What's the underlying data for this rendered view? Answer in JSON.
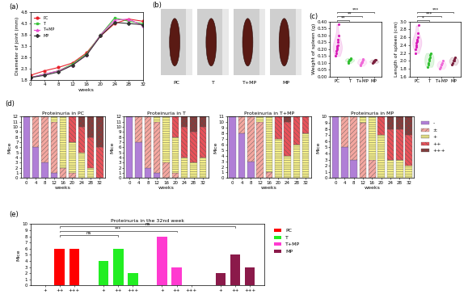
{
  "chart_data": [
    {
      "type": "line",
      "panel_label": "(a)",
      "x_label": "weeks",
      "y_label": "Diameter of joint (mm)",
      "x": [
        0,
        4,
        8,
        12,
        16,
        20,
        24,
        28,
        32
      ],
      "xlim": [
        0,
        32
      ],
      "xticks": [
        0,
        4,
        8,
        12,
        16,
        20,
        24,
        28,
        32
      ],
      "ylim": [
        1.8,
        4.8
      ],
      "yticks": [
        1.8,
        2.3,
        2.8,
        3.3,
        3.8,
        4.3,
        4.8
      ],
      "legend": "upper left",
      "series": [
        {
          "name": "PC",
          "color": "#e8202a",
          "marker": "circle",
          "values": [
            2.0,
            2.2,
            2.35,
            2.55,
            3.0,
            3.75,
            4.3,
            4.5,
            4.4
          ]
        },
        {
          "name": "T",
          "color": "#3cc43c",
          "marker": "square",
          "values": [
            1.9,
            2.05,
            2.2,
            2.5,
            2.95,
            3.8,
            4.55,
            4.4,
            4.3
          ]
        },
        {
          "name": "T+MP",
          "color": "#e84ad0",
          "marker": "triangle",
          "values": [
            1.9,
            2.05,
            2.2,
            2.45,
            2.9,
            3.8,
            4.45,
            4.5,
            4.2
          ]
        },
        {
          "name": "MP",
          "color": "#333333",
          "marker": "diamond",
          "values": [
            1.9,
            2.0,
            2.15,
            2.45,
            2.9,
            3.75,
            4.35,
            4.3,
            4.25
          ]
        }
      ]
    },
    {
      "type": "image",
      "panel_label": "(b)",
      "categories": [
        "PC",
        "T",
        "T+MP",
        "MP"
      ]
    },
    {
      "type": "violin",
      "panel_label": "(c)",
      "y_label": "Weight of spleen (g)",
      "categories": [
        "PC",
        "T",
        "T+MP",
        "MP"
      ],
      "colors": [
        "#d81bb8",
        "#2fbf2f",
        "#f06ad8",
        "#7a1f3d"
      ],
      "ylim": [
        0.0,
        0.4
      ],
      "yticks": [
        {
          "value": 0.0,
          "label": "0.00"
        },
        {
          "value": 0.05,
          "label": "0.05"
        },
        {
          "value": 0.1,
          "label": "0.10"
        },
        {
          "value": 0.15,
          "label": "0.15"
        },
        {
          "value": 0.2,
          "label": "0.20"
        },
        {
          "value": 0.25,
          "label": "0.25"
        },
        {
          "value": 0.3,
          "label": "0.30"
        },
        {
          "value": 0.35,
          "label": "0.35"
        },
        {
          "value": 0.4,
          "label": "0.40"
        }
      ],
      "points": [
        [
          0.15,
          0.17,
          0.19,
          0.2,
          0.21,
          0.22,
          0.23,
          0.25,
          0.27,
          0.3,
          0.38
        ],
        [
          0.1,
          0.11,
          0.115,
          0.12,
          0.12,
          0.125,
          0.13,
          0.135
        ],
        [
          0.08,
          0.09,
          0.1,
          0.1,
          0.105,
          0.11,
          0.12,
          0.125,
          0.13
        ],
        [
          0.1,
          0.105,
          0.11,
          0.11,
          0.115,
          0.12,
          0.125
        ]
      ],
      "comparisons": [
        {
          "from": "PC",
          "to": "T",
          "label": "**"
        },
        {
          "from": "PC",
          "to": "T+MP",
          "label": "**"
        },
        {
          "from": "PC",
          "to": "MP",
          "label": "***"
        }
      ]
    },
    {
      "type": "violin",
      "y_label": "Length of spleen (cm)",
      "categories": [
        "PC",
        "T",
        "T+MP",
        "MP"
      ],
      "colors": [
        "#d81bb8",
        "#2fbf2f",
        "#f06ad8",
        "#7a1f3d"
      ],
      "ylim": [
        1.6,
        3.0
      ],
      "yticks": [
        1.6,
        1.8,
        2.0,
        2.2,
        2.4,
        2.6,
        2.8,
        3.0
      ],
      "points": [
        [
          2.2,
          2.3,
          2.35,
          2.4,
          2.45,
          2.5,
          2.5,
          2.55,
          2.6,
          2.7,
          2.9
        ],
        [
          1.85,
          1.9,
          1.95,
          2.0,
          2.05,
          2.1,
          2.15,
          2.2
        ],
        [
          1.8,
          1.85,
          1.9,
          1.9,
          1.95,
          2.0
        ],
        [
          1.9,
          1.95,
          2.0,
          2.0,
          2.05,
          2.1
        ]
      ],
      "comparisons": [
        {
          "from": "PC",
          "to": "T",
          "label": "*"
        },
        {
          "from": "PC",
          "to": "T+MP",
          "label": "***"
        },
        {
          "from": "PC",
          "to": "MP",
          "label": "***"
        }
      ]
    },
    {
      "type": "bar",
      "stacked": true,
      "panel_label": "(d)",
      "title": "Proteinuria in PC",
      "x_label": "weeks",
      "y_label": "Mice",
      "categories": [
        "0",
        "4",
        "8",
        "12",
        "16",
        "20",
        "24",
        "28",
        "32"
      ],
      "ylim": [
        0,
        12
      ],
      "yticks": [
        0,
        1,
        2,
        3,
        4,
        5,
        6,
        7,
        8,
        9,
        10,
        11,
        12
      ],
      "series": [
        {
          "name": "-",
          "color": "#b07fd6",
          "values": [
            12,
            6,
            3,
            1,
            0,
            0,
            0,
            0,
            0
          ]
        },
        {
          "name": "±",
          "color": "#f4a7a0",
          "values": [
            0,
            6,
            9,
            10,
            2,
            1,
            0,
            0,
            0
          ]
        },
        {
          "name": "+",
          "color": "#f5f08a",
          "values": [
            0,
            0,
            0,
            1,
            10,
            6,
            5,
            2,
            0
          ]
        },
        {
          "name": "++",
          "color": "#e8525a",
          "values": [
            0,
            0,
            0,
            0,
            0,
            5,
            5,
            6,
            6
          ]
        },
        {
          "name": "+++",
          "color": "#8a3a3a",
          "values": [
            0,
            0,
            0,
            0,
            0,
            0,
            2,
            4,
            6
          ]
        }
      ]
    },
    {
      "type": "bar",
      "stacked": true,
      "title": "Proteinuria in T",
      "x_label": "weeks",
      "y_label": "Mice",
      "categories": [
        "0",
        "4",
        "8",
        "12",
        "16",
        "20",
        "24",
        "28",
        "32"
      ],
      "ylim": [
        0,
        12
      ],
      "yticks": [
        0,
        1,
        2,
        3,
        4,
        5,
        6,
        7,
        8,
        9,
        10,
        11,
        12
      ],
      "series": [
        {
          "name": "-",
          "color": "#b07fd6",
          "values": [
            12,
            7,
            2,
            1,
            0,
            0,
            0,
            0,
            0
          ]
        },
        {
          "name": "±",
          "color": "#f4a7a0",
          "values": [
            0,
            5,
            10,
            10,
            3,
            1,
            0,
            0,
            0
          ]
        },
        {
          "name": "+",
          "color": "#f5f08a",
          "values": [
            0,
            0,
            0,
            1,
            9,
            7,
            4,
            3,
            4
          ]
        },
        {
          "name": "++",
          "color": "#e8525a",
          "values": [
            0,
            0,
            0,
            0,
            0,
            4,
            6,
            6,
            6
          ]
        },
        {
          "name": "+++",
          "color": "#8a3a3a",
          "values": [
            0,
            0,
            0,
            0,
            0,
            0,
            2,
            3,
            2
          ]
        }
      ]
    },
    {
      "type": "bar",
      "stacked": true,
      "title": "Proteinuria in T+MP",
      "x_label": "weeks",
      "y_label": "Mice",
      "categories": [
        "0",
        "4",
        "8",
        "12",
        "16",
        "20",
        "24",
        "28",
        "32"
      ],
      "ylim": [
        0,
        11
      ],
      "yticks": [
        0,
        1,
        2,
        3,
        4,
        5,
        6,
        7,
        8,
        9,
        10,
        11
      ],
      "series": [
        {
          "name": "-",
          "color": "#b07fd6",
          "values": [
            11,
            8,
            3,
            0,
            0,
            0,
            0,
            0,
            0
          ]
        },
        {
          "name": "±",
          "color": "#f4a7a0",
          "values": [
            0,
            3,
            8,
            10,
            1,
            0,
            0,
            0,
            0
          ]
        },
        {
          "name": "+",
          "color": "#f5f08a",
          "values": [
            0,
            0,
            0,
            1,
            10,
            7,
            4,
            6,
            8
          ]
        },
        {
          "name": "++",
          "color": "#e8525a",
          "values": [
            0,
            0,
            0,
            0,
            0,
            4,
            6,
            5,
            3
          ]
        },
        {
          "name": "+++",
          "color": "#8a3a3a",
          "values": [
            0,
            0,
            0,
            0,
            0,
            0,
            1,
            0,
            0
          ]
        }
      ]
    },
    {
      "type": "bar",
      "stacked": true,
      "title": "Proteinuria in MP",
      "x_label": "weeks",
      "y_label": "Mice",
      "categories": [
        "0",
        "4",
        "8",
        "12",
        "16",
        "20",
        "24",
        "28",
        "32"
      ],
      "ylim": [
        0,
        10
      ],
      "yticks": [
        0,
        1,
        2,
        3,
        4,
        5,
        6,
        7,
        8,
        9,
        10
      ],
      "legend": "right",
      "series": [
        {
          "name": "-",
          "color": "#b07fd6",
          "values": [
            10,
            5,
            3,
            0,
            0,
            0,
            0,
            0,
            0
          ]
        },
        {
          "name": "±",
          "color": "#f4a7a0",
          "values": [
            0,
            5,
            7,
            9,
            3,
            0,
            0,
            0,
            0
          ]
        },
        {
          "name": "+",
          "color": "#f5f08a",
          "values": [
            0,
            0,
            0,
            1,
            7,
            7,
            3,
            3,
            2
          ]
        },
        {
          "name": "++",
          "color": "#e8525a",
          "values": [
            0,
            0,
            0,
            0,
            0,
            3,
            5,
            5,
            5
          ]
        },
        {
          "name": "+++",
          "color": "#8a3a3a",
          "values": [
            0,
            0,
            0,
            0,
            0,
            0,
            2,
            2,
            3
          ]
        }
      ]
    },
    {
      "type": "bar",
      "panel_label": "(e)",
      "title": "Proteinuria in the 32nd week",
      "y_label": "Mice",
      "categories": [
        "+",
        "++",
        "+++"
      ],
      "ylim": [
        0,
        10
      ],
      "yticks": [
        0,
        1,
        2,
        3,
        4,
        5,
        6,
        7,
        8,
        9,
        10
      ],
      "legend": "right",
      "series": [
        {
          "name": "PC",
          "color": "#ff0000",
          "values": [
            0,
            6,
            6
          ]
        },
        {
          "name": "T",
          "color": "#22ee22",
          "values": [
            4,
            6,
            2
          ]
        },
        {
          "name": "T+MP",
          "color": "#ff3ad0",
          "values": [
            8,
            3,
            0
          ]
        },
        {
          "name": "MP",
          "color": "#8b1a4a",
          "values": [
            2,
            5,
            3
          ]
        }
      ],
      "comparisons": [
        {
          "from": "PC",
          "to": "T",
          "label": "ns"
        },
        {
          "from": "PC",
          "to": "T+MP",
          "label": "***"
        },
        {
          "from": "PC",
          "to": "MP",
          "label": "ns"
        }
      ]
    }
  ]
}
